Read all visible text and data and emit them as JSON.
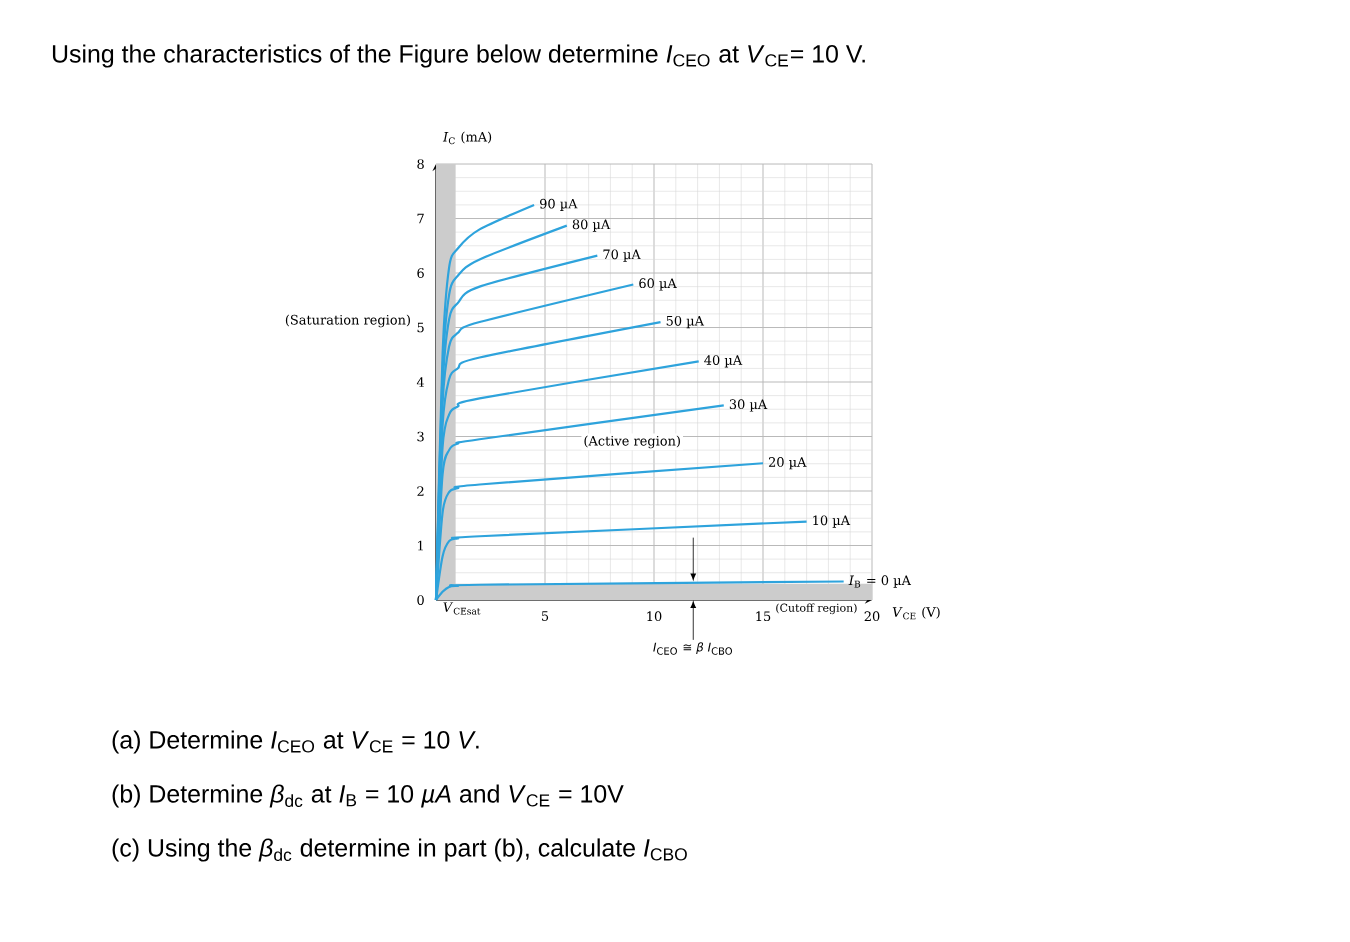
{
  "chart_data": {
    "type": "line",
    "title": "Using the characteristics of the Figure below determine *I*$_{CEO}$ at *V*$_{CE}$= 10 V.",
    "xlabel": "*V*$_{CE}$ (V)",
    "ylabel": "*I*$_{C}$ (mA)",
    "xlim": [
      0,
      20
    ],
    "ylim": [
      0,
      8
    ],
    "xticks": [
      5,
      10,
      15,
      20
    ],
    "yticks": [
      0,
      1,
      2,
      3,
      4,
      5,
      6,
      7,
      8
    ],
    "grid": true,
    "marker": "none",
    "line_style": "solid",
    "series": [
      {
        "name": "90 µA",
        "color": "#2ea3dc",
        "x": [
          0,
          0.3,
          0.6,
          1,
          2,
          4.5
        ],
        "values": [
          0,
          4.5,
          6.1,
          6.45,
          6.8,
          7.25
        ]
      },
      {
        "name": "80 µA",
        "color": "#2ea3dc",
        "x": [
          0,
          0.3,
          0.6,
          1,
          2,
          6.0
        ],
        "values": [
          0,
          4.2,
          5.6,
          5.95,
          6.25,
          6.87
        ]
      },
      {
        "name": "70 µA",
        "color": "#2ea3dc",
        "x": [
          0,
          0.3,
          0.6,
          1,
          2,
          7.4
        ],
        "values": [
          0,
          3.9,
          5.15,
          5.45,
          5.75,
          6.32
        ]
      },
      {
        "name": "60 µA",
        "color": "#2ea3dc",
        "x": [
          0,
          0.3,
          0.6,
          1,
          2,
          9.05
        ],
        "values": [
          0,
          3.6,
          4.65,
          4.9,
          5.1,
          5.79
        ]
      },
      {
        "name": "50 µA",
        "color": "#2ea3dc",
        "x": [
          0,
          0.3,
          0.6,
          1,
          2,
          10.3
        ],
        "values": [
          0,
          3.2,
          4.05,
          4.25,
          4.45,
          5.1
        ]
      },
      {
        "name": "40 µA",
        "color": "#2ea3dc",
        "x": [
          0,
          0.3,
          0.6,
          1,
          2,
          12.05
        ],
        "values": [
          0,
          2.8,
          3.4,
          3.55,
          3.7,
          4.38
        ]
      },
      {
        "name": "30 µA",
        "color": "#2ea3dc",
        "x": [
          0,
          0.3,
          0.6,
          1,
          2,
          13.2
        ],
        "values": [
          0,
          2.3,
          2.75,
          2.87,
          2.95,
          3.57
        ]
      },
      {
        "name": "20 µA",
        "color": "#2ea3dc",
        "x": [
          0,
          0.3,
          0.6,
          1,
          2,
          15.0
        ],
        "values": [
          0,
          1.6,
          1.98,
          2.05,
          2.12,
          2.51
        ]
      },
      {
        "name": "10 µA",
        "color": "#2ea3dc",
        "x": [
          0,
          0.3,
          0.6,
          1,
          2,
          17.0
        ],
        "values": [
          0,
          0.8,
          1.08,
          1.13,
          1.17,
          1.44
        ]
      },
      {
        "name": "*I*$_{B}$ = 0 µA",
        "color": "#2ea3dc",
        "x": [
          0,
          0.3,
          0.6,
          1,
          2,
          18.7
        ],
        "values": [
          0,
          0.15,
          0.24,
          0.26,
          0.28,
          0.34
        ]
      }
    ],
    "bands": [
      {
        "axis": "x",
        "from": 0,
        "to": 0.9,
        "label": "(Saturation region)",
        "color": "#cccccc"
      },
      {
        "axis": "y",
        "from": 0,
        "to": 0.3,
        "label": "(Cutoff region)",
        "color": "#cccccc"
      }
    ],
    "annotations": [
      "(Active region)",
      {
        "text": "*V*$_{CEsat}$",
        "x": 0.2,
        "y": 0
      },
      {
        "text": "*I*$_{CEO}$ ≅ *β I*$_{CBO}$",
        "x": 11.8,
        "y": 0
      },
      "(a)  Determine *I*$_{CEO}$ at *V*$_{CE}$ = 10 *V*.",
      "(b)  Determine *β*$_{dc}$ at *I*$_{B}$ = 10 *µA* and *V*$_{CE}$ = 10V",
      "(c)  Using the *β*$_{dc}$ determine in part (b), calculate *I*$_{CBO}$"
    ]
  }
}
